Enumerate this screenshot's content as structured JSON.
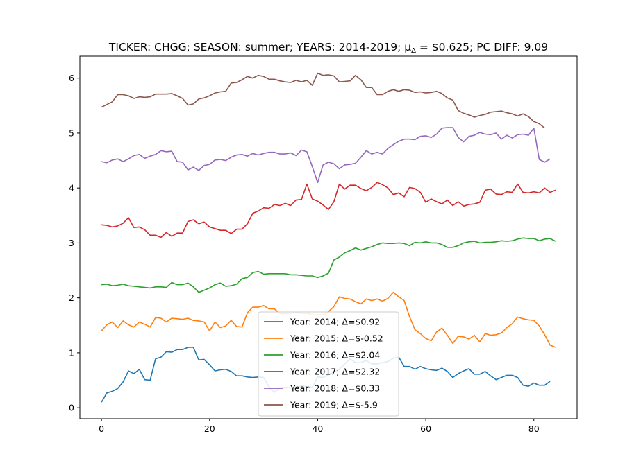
{
  "chart_data": {
    "type": "line",
    "title": "TICKER: CHGG; SEASON: summer; YEARS: 2014-2019; μ_Δ = $0.625; PC DIFF: 9.09",
    "xlabel": "",
    "ylabel": "",
    "xlim": [
      -4,
      88
    ],
    "ylim": [
      -0.2,
      6.4
    ],
    "xticks": [
      0,
      20,
      40,
      60,
      80
    ],
    "yticks": [
      0,
      1,
      2,
      3,
      4,
      5,
      6
    ],
    "grid": false,
    "legend_position": "lower-center",
    "series": [
      {
        "name": "Year: 2014; Δ=$0.92",
        "color": "#1f77b4",
        "values": [
          0.1,
          0.27,
          0.3,
          0.35,
          0.47,
          0.67,
          0.62,
          0.7,
          0.51,
          0.5,
          0.89,
          0.92,
          1.02,
          1.01,
          1.06,
          1.06,
          1.1,
          1.1,
          0.87,
          0.88,
          0.78,
          0.67,
          0.69,
          0.7,
          0.66,
          0.58,
          0.58,
          0.56,
          0.55,
          0.56,
          0.55,
          0.38,
          0.28,
          0.36,
          0.37,
          0.36,
          0.36,
          0.4,
          0.38,
          0.37,
          0.56,
          0.55,
          0.6,
          0.65,
          0.7,
          0.8,
          0.89,
          0.82,
          0.82,
          0.86,
          0.8,
          0.8,
          0.82,
          0.84,
          0.9,
          0.92,
          0.75,
          0.75,
          0.7,
          0.75,
          0.71,
          0.69,
          0.68,
          0.72,
          0.66,
          0.55,
          0.62,
          0.67,
          0.71,
          0.61,
          0.61,
          0.66,
          0.58,
          0.51,
          0.55,
          0.59,
          0.59,
          0.55,
          0.41,
          0.39,
          0.45,
          0.41,
          0.41,
          0.48
        ]
      },
      {
        "name": "Year: 2015; Δ=$-0.52",
        "color": "#ff7f0e",
        "values": [
          1.4,
          1.51,
          1.56,
          1.46,
          1.58,
          1.51,
          1.47,
          1.56,
          1.52,
          1.47,
          1.64,
          1.63,
          1.56,
          1.63,
          1.62,
          1.61,
          1.63,
          1.59,
          1.58,
          1.56,
          1.4,
          1.56,
          1.46,
          1.49,
          1.59,
          1.48,
          1.47,
          1.73,
          1.83,
          1.83,
          1.86,
          1.8,
          1.8,
          1.71,
          1.71,
          1.72,
          1.73,
          1.72,
          1.72,
          1.69,
          1.69,
          1.69,
          1.75,
          1.84,
          2.02,
          1.99,
          1.98,
          1.93,
          1.89,
          1.98,
          1.95,
          1.98,
          1.94,
          1.99,
          2.1,
          2.02,
          1.95,
          1.66,
          1.42,
          1.35,
          1.26,
          1.22,
          1.38,
          1.45,
          1.32,
          1.17,
          1.3,
          1.29,
          1.25,
          1.32,
          1.2,
          1.35,
          1.32,
          1.33,
          1.36,
          1.46,
          1.53,
          1.65,
          1.62,
          1.6,
          1.59,
          1.49,
          1.33,
          1.14,
          1.1
        ]
      },
      {
        "name": "Year: 2016; Δ=$2.04",
        "color": "#2ca02c",
        "values": [
          2.24,
          2.25,
          2.22,
          2.23,
          2.25,
          2.22,
          2.21,
          2.2,
          2.19,
          2.18,
          2.2,
          2.2,
          2.19,
          2.28,
          2.24,
          2.24,
          2.27,
          2.2,
          2.1,
          2.14,
          2.18,
          2.24,
          2.27,
          2.21,
          2.22,
          2.25,
          2.35,
          2.37,
          2.46,
          2.48,
          2.43,
          2.44,
          2.44,
          2.44,
          2.44,
          2.42,
          2.42,
          2.41,
          2.4,
          2.4,
          2.37,
          2.4,
          2.45,
          2.69,
          2.74,
          2.82,
          2.86,
          2.91,
          2.87,
          2.9,
          2.93,
          2.97,
          3.0,
          2.99,
          2.99,
          3.0,
          2.99,
          2.95,
          3.01,
          3.0,
          3.02,
          3.0,
          3.0,
          2.97,
          2.92,
          2.92,
          2.95,
          3.0,
          3.02,
          3.03,
          3.0,
          3.01,
          3.01,
          3.02,
          3.04,
          3.03,
          3.04,
          3.07,
          3.09,
          3.08,
          3.08,
          3.04,
          3.07,
          3.08,
          3.03
        ]
      },
      {
        "name": "Year: 2017; Δ=$2.32",
        "color": "#d62728",
        "values": [
          3.33,
          3.32,
          3.29,
          3.31,
          3.36,
          3.46,
          3.28,
          3.29,
          3.24,
          3.14,
          3.14,
          3.1,
          3.19,
          3.12,
          3.18,
          3.18,
          3.39,
          3.42,
          3.35,
          3.38,
          3.29,
          3.26,
          3.23,
          3.23,
          3.17,
          3.25,
          3.25,
          3.35,
          3.54,
          3.58,
          3.64,
          3.63,
          3.7,
          3.68,
          3.72,
          3.68,
          3.78,
          3.79,
          4.07,
          3.8,
          3.76,
          3.69,
          3.61,
          3.75,
          4.07,
          3.98,
          4.05,
          4.05,
          3.99,
          3.95,
          4.01,
          4.1,
          4.06,
          4.0,
          3.88,
          3.91,
          3.84,
          4.01,
          3.99,
          3.92,
          3.74,
          3.8,
          3.75,
          3.71,
          3.78,
          3.68,
          3.75,
          3.67,
          3.7,
          3.71,
          3.74,
          3.96,
          3.98,
          3.89,
          3.88,
          3.93,
          3.92,
          4.07,
          3.92,
          3.91,
          3.93,
          3.91,
          4.0,
          3.92,
          3.96
        ]
      },
      {
        "name": "Year: 2018; Δ=$0.33",
        "color": "#9467bd",
        "values": [
          4.48,
          4.46,
          4.51,
          4.53,
          4.48,
          4.53,
          4.59,
          4.61,
          4.54,
          4.58,
          4.61,
          4.68,
          4.66,
          4.67,
          4.48,
          4.47,
          4.33,
          4.38,
          4.32,
          4.41,
          4.43,
          4.51,
          4.52,
          4.5,
          4.56,
          4.6,
          4.61,
          4.58,
          4.63,
          4.6,
          4.63,
          4.65,
          4.65,
          4.62,
          4.62,
          4.64,
          4.59,
          4.69,
          4.66,
          4.39,
          4.1,
          4.42,
          4.47,
          4.44,
          4.35,
          4.42,
          4.43,
          4.45,
          4.56,
          4.68,
          4.62,
          4.65,
          4.62,
          4.72,
          4.79,
          4.85,
          4.89,
          4.89,
          4.88,
          4.94,
          4.95,
          4.92,
          4.98,
          5.09,
          5.1,
          5.1,
          4.92,
          4.84,
          4.94,
          4.96,
          5.01,
          4.98,
          4.97,
          5.0,
          4.89,
          4.96,
          4.91,
          4.97,
          4.98,
          4.96,
          5.09,
          4.52,
          4.47,
          4.53
        ]
      },
      {
        "name": "Year: 2019; Δ=$-5.9",
        "color": "#8c564b",
        "values": [
          5.47,
          5.52,
          5.57,
          5.7,
          5.7,
          5.68,
          5.63,
          5.66,
          5.65,
          5.66,
          5.71,
          5.71,
          5.71,
          5.72,
          5.68,
          5.63,
          5.51,
          5.53,
          5.62,
          5.64,
          5.68,
          5.73,
          5.75,
          5.76,
          5.91,
          5.92,
          5.97,
          6.03,
          6.0,
          6.05,
          6.03,
          5.98,
          5.98,
          5.95,
          5.93,
          5.92,
          5.96,
          5.93,
          5.96,
          5.87,
          6.09,
          6.05,
          6.06,
          6.04,
          5.93,
          5.94,
          5.95,
          6.05,
          5.97,
          5.83,
          5.83,
          5.7,
          5.7,
          5.76,
          5.79,
          5.76,
          5.79,
          5.78,
          5.74,
          5.75,
          5.73,
          5.74,
          5.76,
          5.72,
          5.64,
          5.6,
          5.41,
          5.36,
          5.33,
          5.29,
          5.32,
          5.34,
          5.38,
          5.39,
          5.4,
          5.37,
          5.35,
          5.31,
          5.35,
          5.3,
          5.21,
          5.17,
          5.09
        ]
      }
    ]
  }
}
